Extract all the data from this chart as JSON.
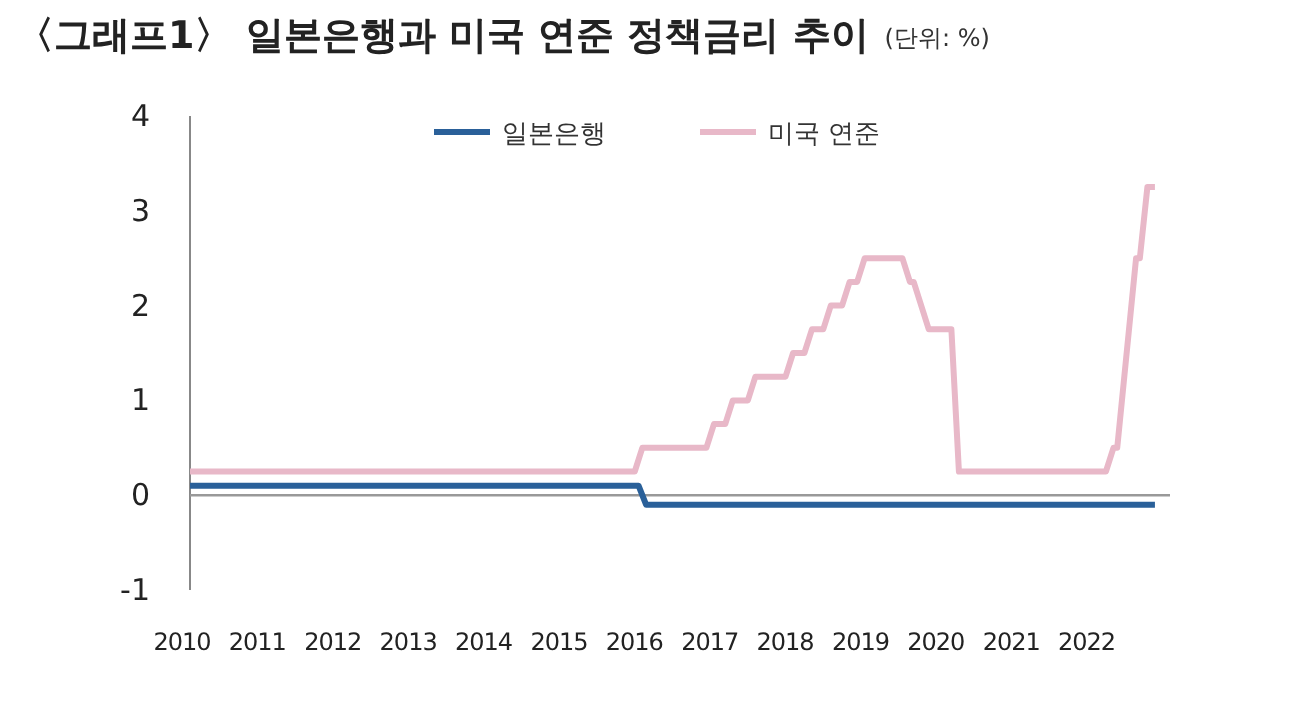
{
  "chart_data": {
    "type": "line",
    "title": "〈그래프1〉 일본은행과 미국 연준 정책금리 추이",
    "subtitle": "(단위: %)",
    "xlim": [
      2010,
      2023
    ],
    "xticks": [
      2010,
      2011,
      2012,
      2013,
      2014,
      2015,
      2016,
      2017,
      2018,
      2019,
      2020,
      2021,
      2022
    ],
    "ylim": [
      -1,
      4
    ],
    "yticks": [
      -1,
      0,
      1,
      2,
      3,
      4
    ],
    "legend": "top",
    "grid": false,
    "ref_lines": [
      {
        "axis": "y",
        "value": 0,
        "color": "#999999"
      }
    ],
    "series": [
      {
        "name": "일본은행",
        "color": "#2a6099",
        "x": [
          2010.0,
          2015.95,
          2016.05,
          2022.8
        ],
        "values": [
          0.1,
          0.1,
          -0.1,
          -0.1
        ]
      },
      {
        "name": "미국 연준",
        "color": "#e8b8c8",
        "x": [
          2010.0,
          2015.9,
          2016.0,
          2016.85,
          2016.95,
          2017.1,
          2017.2,
          2017.4,
          2017.5,
          2017.9,
          2018.0,
          2018.15,
          2018.25,
          2018.4,
          2018.5,
          2018.65,
          2018.75,
          2018.85,
          2018.95,
          2019.45,
          2019.55,
          2019.6,
          2019.8,
          2020.1,
          2020.2,
          2022.15,
          2022.25,
          2022.3,
          2022.55,
          2022.6,
          2022.7,
          2022.8
        ],
        "values": [
          0.25,
          0.25,
          0.5,
          0.5,
          0.75,
          0.75,
          1.0,
          1.0,
          1.25,
          1.25,
          1.5,
          1.5,
          1.75,
          1.75,
          2.0,
          2.0,
          2.25,
          2.25,
          2.5,
          2.5,
          2.25,
          2.25,
          1.75,
          1.75,
          0.25,
          0.25,
          0.5,
          0.5,
          2.5,
          2.5,
          3.25,
          3.25
        ]
      }
    ]
  }
}
